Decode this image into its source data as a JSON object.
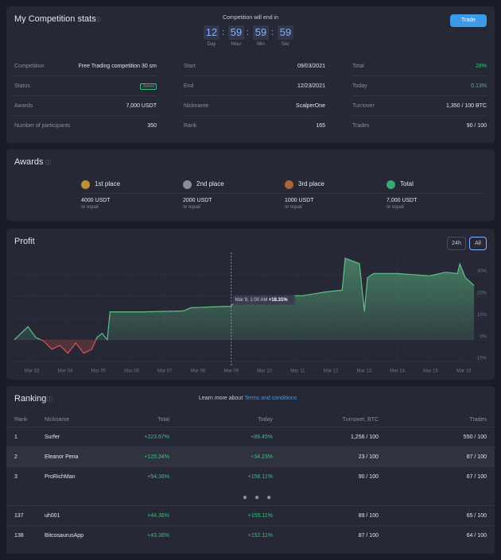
{
  "header": {
    "title": "My Competition stats",
    "countdown_label": "Competition will end in",
    "countdown": [
      {
        "value": "12",
        "unit": "Day"
      },
      {
        "value": "59",
        "unit": "Hour"
      },
      {
        "value": "59",
        "unit": "Min"
      },
      {
        "value": "59",
        "unit": "Sec"
      }
    ],
    "button": "Trade"
  },
  "stats": {
    "columns": [
      [
        {
          "label": "Competition",
          "value": "Free Trading competition 30 sm"
        },
        {
          "label": "Status",
          "value": "Joined",
          "badge": true
        },
        {
          "label": "Awards",
          "value": "7,000 USDT"
        },
        {
          "label": "Number of participants",
          "value": "350"
        }
      ],
      [
        {
          "label": "Start",
          "value": "09/03/2021"
        },
        {
          "label": "End",
          "value": "12/23/2021"
        },
        {
          "label": "Nickname",
          "value": "ScalperOne"
        },
        {
          "label": "Rank",
          "value": "165"
        }
      ],
      [
        {
          "label": "Total",
          "value": "28%",
          "color": "#3fbf7f"
        },
        {
          "label": "Today",
          "value": "0.13%",
          "color": "#3fbf7f"
        },
        {
          "label": "Turnover",
          "value": "1,350 / 100 BTC"
        },
        {
          "label": "Trades",
          "value": "90 / 100"
        }
      ]
    ]
  },
  "awards": {
    "title": "Awards",
    "items": [
      {
        "place": "1st place",
        "amount": "4000 USDT",
        "note": "or equal",
        "color": "#d9a13b"
      },
      {
        "place": "2nd place",
        "amount": "2000 USDT",
        "note": "or equal",
        "color": "#9aa0ad"
      },
      {
        "place": "3rd place",
        "amount": "1000 USDT",
        "note": "or equal",
        "color": "#c0703f"
      },
      {
        "place": "Total",
        "amount": "7,000 USDT",
        "note": "or equal",
        "color": "#3fbf7f"
      }
    ]
  },
  "profit": {
    "title": "Profit",
    "buttons": [
      "24h",
      "All"
    ],
    "chart_data": {
      "type": "line",
      "color": "#5fbf85",
      "negative_color": "#d9534f",
      "grid": true,
      "x": [
        2.47,
        2.88,
        3.12,
        3.36,
        3.6,
        3.84,
        4.08,
        4.32,
        4.56,
        4.8,
        4.96,
        5.11,
        5.27,
        5.35,
        6.35,
        7.55,
        7.79,
        8.99,
        9.22,
        10.18,
        11.14,
        11.86,
        12.34,
        12.43,
        12.86,
        13.01,
        13.1,
        13.29,
        14.01,
        14.97,
        15.45,
        15.81,
        15.88,
        16.05,
        16.31
      ],
      "values": [
        0,
        6,
        1,
        -0.7,
        -4.4,
        -2.6,
        -6.2,
        -1.5,
        -6.2,
        -4.4,
        1.1,
        2.9,
        0,
        12.8,
        12.8,
        13.2,
        14.7,
        15.4,
        19.4,
        20.2,
        20.2,
        22,
        22.8,
        37.4,
        34.9,
        13,
        28.5,
        30.4,
        30.4,
        29.3,
        31,
        30.4,
        34.8,
        28.5,
        24.9
      ],
      "xlim": [
        2.47,
        16.69
      ],
      "ylim": [
        -12.5,
        40
      ],
      "xticks": [
        {
          "value": 3,
          "label": "Mar 03"
        },
        {
          "value": 4,
          "label": "Mar 04"
        },
        {
          "value": 5,
          "label": "Mar 05"
        },
        {
          "value": 6,
          "label": "Mar 06"
        },
        {
          "value": 7,
          "label": "Mar 07"
        },
        {
          "value": 8,
          "label": "Mar 08"
        },
        {
          "value": 9,
          "label": "Mar 09"
        },
        {
          "value": 10,
          "label": "Mar 10"
        },
        {
          "value": 11,
          "label": "Mar 11"
        },
        {
          "value": 12,
          "label": "Mar 12"
        },
        {
          "value": 13,
          "label": "Mar 13"
        },
        {
          "value": 14,
          "label": "Mar 14"
        },
        {
          "value": 15,
          "label": "Mar 15"
        },
        {
          "value": 16,
          "label": "Mar 16"
        }
      ],
      "yticks": [
        {
          "value": -10,
          "label": "-10%"
        },
        {
          "value": 0,
          "label": "0%"
        },
        {
          "value": 10,
          "label": "10%"
        },
        {
          "value": 20,
          "label": "20%"
        },
        {
          "value": 30,
          "label": "30%"
        }
      ],
      "annotation": {
        "x": 9,
        "value": 18.31,
        "time": "Mar 9, 1:00 AM",
        "value_label": "+18.31%"
      }
    }
  },
  "ranking": {
    "title": "Ranking",
    "learn": "Learn more about",
    "link": "Terms and conditions",
    "columns": [
      "Rank",
      "Nickname",
      "Total",
      "Today",
      "Turnover, BTC",
      "Trades"
    ],
    "rows": [
      [
        "1",
        "Surfer",
        "+223.67%",
        "+89.45%",
        "1,256 / 100",
        "550 / 100"
      ],
      [
        "2",
        "Eleanor Pena",
        "+128.34%",
        "+34.23%",
        "23 / 100",
        "87 / 100"
      ],
      [
        "3",
        "ProRichMan",
        "+54.36%",
        "+156.11%",
        "90 / 100",
        "67 / 100"
      ]
    ],
    "more_rows": [
      [
        "137",
        "uh001",
        "+44.36%",
        "+155.11%",
        "89 / 100",
        "65 / 100"
      ],
      [
        "138",
        "BitcosaurusApp",
        "+43.36%",
        "+152.11%",
        "87 / 100",
        "64 / 100"
      ]
    ]
  }
}
